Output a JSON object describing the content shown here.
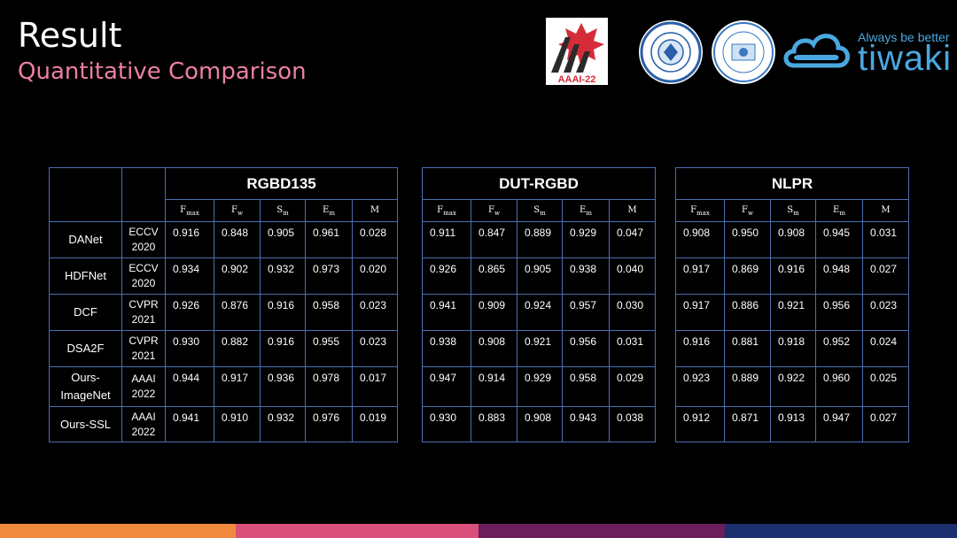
{
  "slide": {
    "title": "Result",
    "subtitle": "Quantitative Comparison"
  },
  "logos": {
    "aaai": "AAAI-22",
    "tiwaki_tagline": "Always be better",
    "tiwaki_name": "tiwaki"
  },
  "colors": {
    "subtitle": "#ec7fa7",
    "border": "#4a6fb0",
    "bar": [
      "#f08a3c",
      "#d9507a",
      "#6a1f5c",
      "#1c2f6e"
    ]
  },
  "metrics": [
    {
      "base": "F",
      "sub": "max"
    },
    {
      "base": "F",
      "sub": "w"
    },
    {
      "base": "S",
      "sub": "m"
    },
    {
      "base": "E",
      "sub": "m"
    },
    {
      "base": "M",
      "sub": ""
    }
  ],
  "methods": [
    {
      "name": "DANet",
      "venue": [
        "ECCV",
        "2020"
      ]
    },
    {
      "name": "HDFNet",
      "venue": [
        "ECCV",
        "2020"
      ]
    },
    {
      "name": "DCF",
      "venue": [
        "CVPR",
        "2021"
      ]
    },
    {
      "name": "DSA2F",
      "venue": [
        "CVPR",
        "2021"
      ]
    },
    {
      "name": "Ours-ImageNet",
      "name_lines": [
        "Ours-",
        "ImageNet"
      ],
      "venue": [
        "AAAI",
        "2022"
      ]
    },
    {
      "name": "Ours-SSL",
      "venue": [
        "AAAI",
        "2022"
      ]
    }
  ],
  "datasets": [
    {
      "name": "RGBD135",
      "rows": [
        [
          "0.916",
          "0.848",
          "0.905",
          "0.961",
          "0.028"
        ],
        [
          "0.934",
          "0.902",
          "0.932",
          "0.973",
          "0.020"
        ],
        [
          "0.926",
          "0.876",
          "0.916",
          "0.958",
          "0.023"
        ],
        [
          "0.930",
          "0.882",
          "0.916",
          "0.955",
          "0.023"
        ],
        [
          "0.944",
          "0.917",
          "0.936",
          "0.978",
          "0.017"
        ],
        [
          "0.941",
          "0.910",
          "0.932",
          "0.976",
          "0.019"
        ]
      ]
    },
    {
      "name": "DUT-RGBD",
      "rows": [
        [
          "0.911",
          "0.847",
          "0.889",
          "0.929",
          "0.047"
        ],
        [
          "0.926",
          "0.865",
          "0.905",
          "0.938",
          "0.040"
        ],
        [
          "0.941",
          "0.909",
          "0.924",
          "0.957",
          "0.030"
        ],
        [
          "0.938",
          "0.908",
          "0.921",
          "0.956",
          "0.031"
        ],
        [
          "0.947",
          "0.914",
          "0.929",
          "0.958",
          "0.029"
        ],
        [
          "0.930",
          "0.883",
          "0.908",
          "0.943",
          "0.038"
        ]
      ]
    },
    {
      "name": "NLPR",
      "rows": [
        [
          "0.908",
          "0.950",
          "0.908",
          "0.945",
          "0.031"
        ],
        [
          "0.917",
          "0.869",
          "0.916",
          "0.948",
          "0.027"
        ],
        [
          "0.917",
          "0.886",
          "0.921",
          "0.956",
          "0.023"
        ],
        [
          "0.916",
          "0.881",
          "0.918",
          "0.952",
          "0.024"
        ],
        [
          "0.923",
          "0.889",
          "0.922",
          "0.960",
          "0.025"
        ],
        [
          "0.912",
          "0.871",
          "0.913",
          "0.947",
          "0.027"
        ]
      ]
    }
  ]
}
